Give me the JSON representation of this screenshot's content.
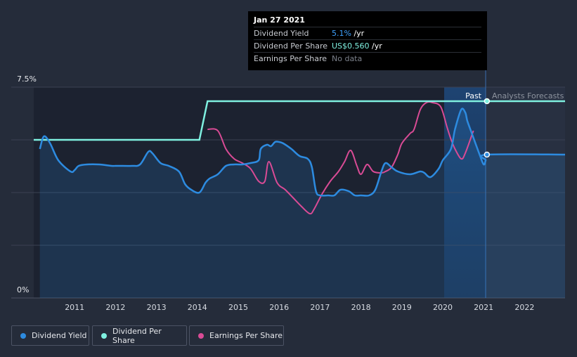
{
  "chart_data": {
    "type": "line",
    "ylim": [
      0,
      7.5
    ],
    "y_tick_labels": [
      "7.5%",
      "0%"
    ],
    "x_tick_labels": [
      "2011",
      "2012",
      "2013",
      "2014",
      "2015",
      "2016",
      "2017",
      "2018",
      "2019",
      "2020",
      "2021",
      "2022"
    ],
    "series": [
      {
        "name": "Dividend Yield",
        "color": "#2d8be0",
        "x": [
          2010.15,
          2010.25,
          2010.4,
          2010.6,
          2010.9,
          2011.0,
          2011.1,
          2011.3,
          2011.6,
          2011.9,
          2012.0,
          2012.1,
          2012.4,
          2012.6,
          2012.8,
          2012.9,
          2013.1,
          2013.3,
          2013.55,
          2013.7,
          2013.85,
          2014.05,
          2014.2,
          2014.3,
          2014.5,
          2014.7,
          2014.9,
          2015.1,
          2015.3,
          2015.5,
          2015.55,
          2015.7,
          2015.8,
          2015.9,
          2016.0,
          2016.1,
          2016.3,
          2016.5,
          2016.7,
          2016.8,
          2016.9,
          2017.0,
          2017.2,
          2017.35,
          2017.5,
          2017.7,
          2017.85,
          2018.0,
          2018.2,
          2018.35,
          2018.5,
          2018.6,
          2018.75,
          2018.9,
          2019.2,
          2019.45,
          2019.55,
          2019.7,
          2019.9,
          2020.0,
          2020.2,
          2020.3,
          2020.45,
          2020.55,
          2020.6,
          2020.7,
          2020.9,
          2021.0,
          2021.05,
          2021.08,
          2022.99
        ],
        "values": [
          5.3,
          5.75,
          5.5,
          4.9,
          4.5,
          4.55,
          4.7,
          4.75,
          4.75,
          4.7,
          4.7,
          4.7,
          4.7,
          4.75,
          5.2,
          5.15,
          4.8,
          4.7,
          4.5,
          4.05,
          3.85,
          3.75,
          4.1,
          4.25,
          4.4,
          4.7,
          4.75,
          4.75,
          4.8,
          4.9,
          5.3,
          5.45,
          5.4,
          5.55,
          5.55,
          5.5,
          5.3,
          5.05,
          4.95,
          4.65,
          3.8,
          3.65,
          3.65,
          3.65,
          3.85,
          3.8,
          3.65,
          3.65,
          3.65,
          3.85,
          4.5,
          4.8,
          4.65,
          4.5,
          4.4,
          4.5,
          4.45,
          4.3,
          4.6,
          4.9,
          5.3,
          6.0,
          6.7,
          6.6,
          6.3,
          5.9,
          5.1,
          4.75,
          4.9,
          5.1,
          5.1
        ]
      },
      {
        "name": "Dividend Per Share",
        "color": "#7ff0e0",
        "x": [
          2010.0,
          2014.05,
          2014.25,
          2021.08,
          2022.99
        ],
        "values": [
          0.45,
          0.45,
          0.56,
          0.56,
          0.56
        ]
      },
      {
        "name": "Earnings Per Share",
        "color": "#d94b95",
        "x": [
          2014.25,
          2014.5,
          2014.7,
          2014.9,
          2015.1,
          2015.3,
          2015.5,
          2015.65,
          2015.75,
          2015.95,
          2016.15,
          2016.35,
          2016.55,
          2016.75,
          2016.85,
          2017.05,
          2017.25,
          2017.45,
          2017.6,
          2017.75,
          2017.9,
          2018.0,
          2018.15,
          2018.3,
          2018.5,
          2018.6,
          2018.75,
          2018.9,
          2019.0,
          2019.2,
          2019.3,
          2019.45,
          2019.6,
          2019.75,
          2019.95,
          2020.1,
          2020.2,
          2020.3,
          2020.45,
          2020.55,
          2020.75
        ],
        "values": [
          6.0,
          5.95,
          5.3,
          4.95,
          4.8,
          4.6,
          4.15,
          4.15,
          4.85,
          4.1,
          3.85,
          3.55,
          3.25,
          3.0,
          3.15,
          3.7,
          4.15,
          4.5,
          4.85,
          5.25,
          4.7,
          4.4,
          4.75,
          4.5,
          4.45,
          4.5,
          4.65,
          5.1,
          5.5,
          5.85,
          6.0,
          6.7,
          6.95,
          6.95,
          6.8,
          6.1,
          5.65,
          5.3,
          4.95,
          5.15,
          5.95
        ]
      }
    ],
    "regions": {
      "past_label": "Past",
      "forecast_label": "Analysts Forecasts"
    },
    "highlight_x": 2021.08
  },
  "tooltip": {
    "date": "Jan 27 2021",
    "rows": [
      {
        "name": "Dividend Yield",
        "value": "5.1%",
        "unit": " /yr"
      },
      {
        "name": "Dividend Per Share",
        "value": "US$0.560",
        "unit": " /yr"
      },
      {
        "name": "Earnings Per Share",
        "value": "No data",
        "unit": ""
      }
    ]
  },
  "legend": [
    {
      "label": "Dividend Yield",
      "color": "#2d8be0"
    },
    {
      "label": "Dividend Per Share",
      "color": "#7ff0e0"
    },
    {
      "label": "Earnings Per Share",
      "color": "#d94b95"
    }
  ]
}
